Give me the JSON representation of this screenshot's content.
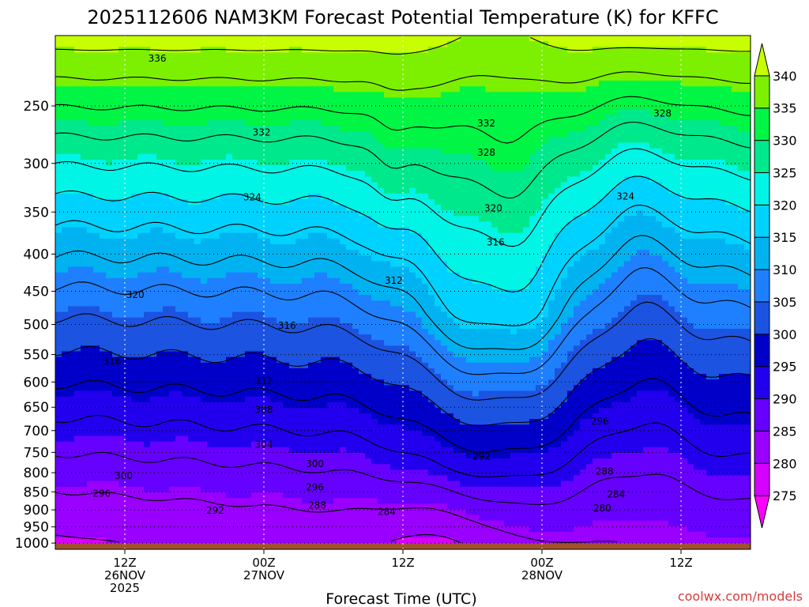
{
  "title": "2025112606 NAM3KM Forecast Potential Temperature (K) for KFFC",
  "xlabel": "Forecast Time (UTC)",
  "watermark": "coolwx.com/models",
  "colors": {
    "plot_bg": "#ffffff",
    "ground": "#a0522d",
    "watermark": "#d63b3b"
  },
  "chart_data": {
    "type": "heatmap",
    "title": "2025112606 NAM3KM Forecast Potential Temperature (K) for KFFC",
    "xlabel": "Forecast Time (UTC)",
    "ylabel": "",
    "x_ticks": [
      {
        "hour": 6,
        "lines": [
          "12Z",
          "26NOV",
          "2025"
        ]
      },
      {
        "hour": 18,
        "lines": [
          "00Z",
          "27NOV"
        ]
      },
      {
        "hour": 30,
        "lines": [
          "12Z"
        ]
      },
      {
        "hour": 42,
        "lines": [
          "00Z",
          "28NOV"
        ]
      },
      {
        "hour": 54,
        "lines": [
          "12Z"
        ]
      }
    ],
    "x_range_hours": [
      0,
      60
    ],
    "y_ticks": [
      250,
      300,
      350,
      400,
      450,
      500,
      550,
      600,
      650,
      700,
      750,
      800,
      850,
      900,
      950,
      1000
    ],
    "y_range_hpa": [
      200,
      1020
    ],
    "y_scale": "log",
    "colorbar": {
      "labels": [
        275,
        280,
        285,
        290,
        295,
        300,
        305,
        310,
        315,
        320,
        325,
        330,
        335,
        340
      ],
      "colors": [
        "#ff00ff",
        "#d600ff",
        "#9900ff",
        "#6600ff",
        "#2200ee",
        "#0000c8",
        "#1c53e0",
        "#1e80ff",
        "#00b3f0",
        "#00d2ff",
        "#00f5e6",
        "#00e88c",
        "#00f544",
        "#7cf000",
        "#c8ff00"
      ]
    },
    "contour_labels": [
      {
        "value": "336",
        "hour": 8.8,
        "p": 215
      },
      {
        "value": "332",
        "hour": 17.8,
        "p": 272
      },
      {
        "value": "332",
        "hour": 37.2,
        "p": 264
      },
      {
        "value": "328",
        "hour": 37.2,
        "p": 290
      },
      {
        "value": "328",
        "hour": 52.4,
        "p": 256
      },
      {
        "value": "324",
        "hour": 17.0,
        "p": 334
      },
      {
        "value": "324",
        "hour": 49.2,
        "p": 333
      },
      {
        "value": "320",
        "hour": 37.8,
        "p": 346
      },
      {
        "value": "316",
        "hour": 38.0,
        "p": 385
      },
      {
        "value": "312",
        "hour": 29.2,
        "p": 435
      },
      {
        "value": "320",
        "hour": 6.9,
        "p": 455
      },
      {
        "value": "316",
        "hour": 20.0,
        "p": 502
      },
      {
        "value": "316",
        "hour": 4.9,
        "p": 562
      },
      {
        "value": "312",
        "hour": 18.0,
        "p": 598
      },
      {
        "value": "308",
        "hour": 18.0,
        "p": 655
      },
      {
        "value": "304",
        "hour": 18.0,
        "p": 732
      },
      {
        "value": "300",
        "hour": 5.9,
        "p": 808
      },
      {
        "value": "300",
        "hour": 22.4,
        "p": 778
      },
      {
        "value": "296",
        "hour": 4.0,
        "p": 855
      },
      {
        "value": "296",
        "hour": 22.4,
        "p": 838
      },
      {
        "value": "292",
        "hour": 13.8,
        "p": 902
      },
      {
        "value": "292",
        "hour": 36.8,
        "p": 760
      },
      {
        "value": "296",
        "hour": 47.0,
        "p": 680
      },
      {
        "value": "288",
        "hour": 22.6,
        "p": 888
      },
      {
        "value": "288",
        "hour": 47.4,
        "p": 797
      },
      {
        "value": "284",
        "hour": 28.6,
        "p": 905
      },
      {
        "value": "284",
        "hour": 48.4,
        "p": 857
      },
      {
        "value": "280",
        "hour": 47.2,
        "p": 895
      }
    ]
  }
}
